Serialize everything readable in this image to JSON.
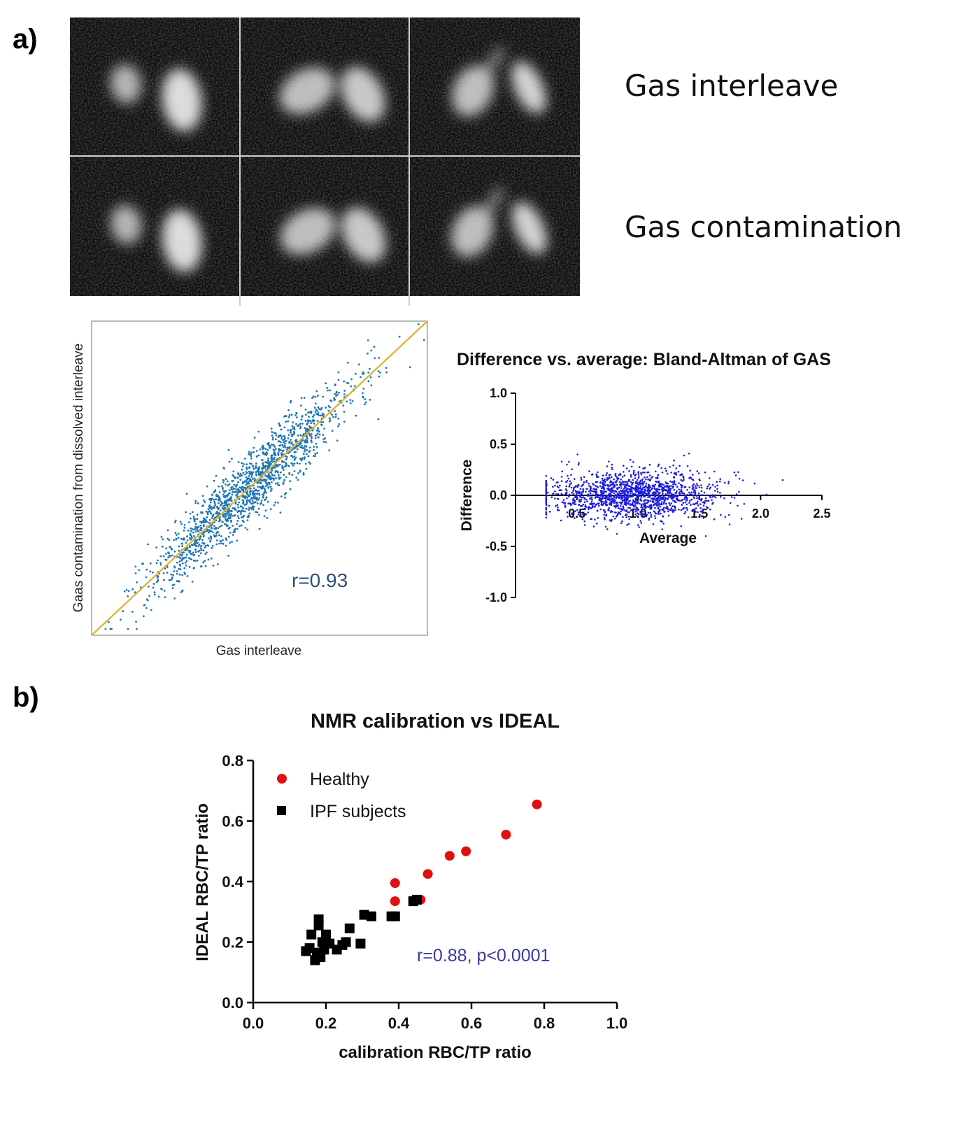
{
  "panel_labels": {
    "a": "a)",
    "b": "b)"
  },
  "image_rows": {
    "top_label": "Gas interleave",
    "bottom_label": "Gas contamination"
  },
  "chart_data": [
    {
      "id": "scatter_a",
      "type": "scatter",
      "title": "",
      "xlabel": "Gas interleave",
      "ylabel": "Gaas contamination from dissolved interleave",
      "annotation": "r=0.93",
      "n_points": 1600,
      "correlation": 0.93,
      "xlim": [
        0,
        1
      ],
      "ylim": [
        0,
        1
      ],
      "fit_line": {
        "from": [
          0.0,
          0.0
        ],
        "to": [
          1.0,
          1.0
        ],
        "color": "#e0b43a"
      },
      "point_color": "#1f77b4"
    },
    {
      "id": "bland_altman",
      "type": "scatter",
      "title": "Difference vs. average: Bland-Altman of GAS",
      "xlabel": "Average",
      "ylabel": "Difference",
      "x_ticks": [
        "0.5",
        "1.0",
        "1.5",
        "2.0",
        "2.5"
      ],
      "y_ticks": [
        "-1.0",
        "-0.5",
        "0.0",
        "0.5",
        "1.0"
      ],
      "xlim": [
        0.0,
        2.5
      ],
      "ylim": [
        -1.0,
        1.0
      ],
      "n_points": 1500,
      "x_center": 0.95,
      "x_spread": 0.35,
      "y_spread": 0.12,
      "point_color": "#1d1de0"
    },
    {
      "id": "scatter_b",
      "type": "scatter",
      "title": "NMR calibration vs IDEAL",
      "xlabel": "calibration RBC/TP ratio",
      "ylabel": "IDEAL RBC/TP ratio",
      "x_ticks": [
        "0.0",
        "0.2",
        "0.4",
        "0.6",
        "0.8",
        "1.0"
      ],
      "y_ticks": [
        "0.0",
        "0.2",
        "0.4",
        "0.6",
        "0.8"
      ],
      "xlim": [
        0.0,
        1.0
      ],
      "ylim": [
        0.0,
        0.8
      ],
      "annotation": "r=0.88, p<0.0001",
      "series": [
        {
          "name": "Healthy",
          "marker": "circle",
          "color": "#e01010",
          "points": [
            [
              0.39,
              0.395
            ],
            [
              0.39,
              0.335
            ],
            [
              0.46,
              0.34
            ],
            [
              0.48,
              0.425
            ],
            [
              0.54,
              0.485
            ],
            [
              0.585,
              0.5
            ],
            [
              0.695,
              0.555
            ],
            [
              0.78,
              0.655
            ]
          ]
        },
        {
          "name": "IPF subjects",
          "marker": "square",
          "color": "#000000",
          "points": [
            [
              0.145,
              0.17
            ],
            [
              0.155,
              0.18
            ],
            [
              0.16,
              0.225
            ],
            [
              0.17,
              0.14
            ],
            [
              0.175,
              0.165
            ],
            [
              0.18,
              0.275
            ],
            [
              0.18,
              0.255
            ],
            [
              0.185,
              0.15
            ],
            [
              0.19,
              0.2
            ],
            [
              0.195,
              0.175
            ],
            [
              0.2,
              0.225
            ],
            [
              0.21,
              0.195
            ],
            [
              0.23,
              0.175
            ],
            [
              0.245,
              0.19
            ],
            [
              0.255,
              0.2
            ],
            [
              0.265,
              0.245
            ],
            [
              0.295,
              0.195
            ],
            [
              0.305,
              0.29
            ],
            [
              0.325,
              0.285
            ],
            [
              0.38,
              0.285
            ],
            [
              0.39,
              0.285
            ],
            [
              0.44,
              0.335
            ],
            [
              0.45,
              0.34
            ]
          ]
        }
      ]
    }
  ]
}
